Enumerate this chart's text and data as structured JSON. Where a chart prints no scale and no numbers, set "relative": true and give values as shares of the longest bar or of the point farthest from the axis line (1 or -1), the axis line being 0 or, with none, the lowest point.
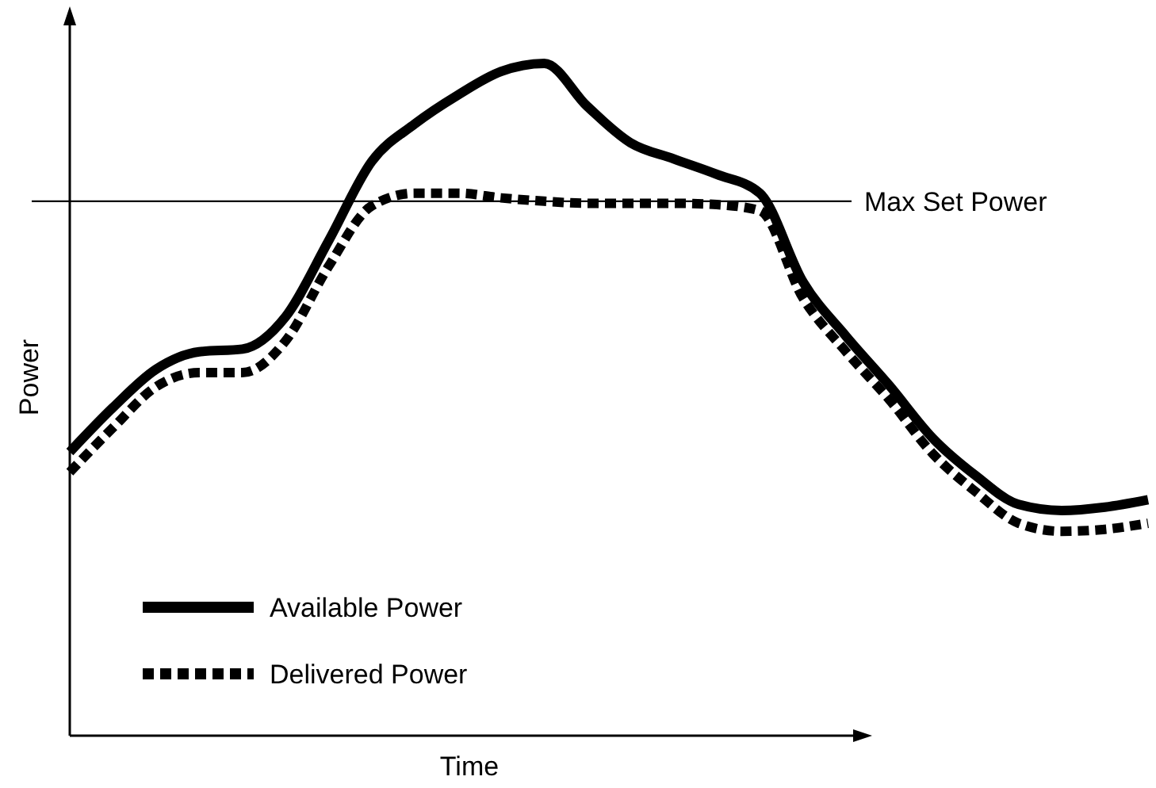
{
  "chart_data": {
    "type": "line",
    "xlabel": "Time",
    "ylabel": "Power",
    "relative": true,
    "legend": "bottom left",
    "categories": [
      null,
      null,
      null,
      null,
      null,
      null,
      null,
      null,
      null,
      null,
      null,
      null,
      null,
      null,
      null,
      null,
      null,
      null,
      null,
      null,
      null,
      null,
      null,
      null,
      null,
      null
    ],
    "series": [
      {
        "name": "Available Power",
        "color": "#000000",
        "line_style": "solid",
        "values": [
          0.422,
          0.488,
          0.545,
          0.571,
          0.575,
          0.623,
          0.736,
          0.854,
          0.91,
          0.953,
          0.988,
          1,
          0.936,
          0.882,
          0.858,
          0.835,
          0.807,
          0.675,
          0.594,
          0.521,
          0.443,
          0.387,
          0.344,
          0.335,
          0.34,
          0.351
        ]
      },
      {
        "name": "Delivered Power",
        "color": "#000000",
        "line_style": "dotted",
        "values": [
          0.392,
          0.458,
          0.519,
          0.54,
          0.54,
          0.587,
          0.698,
          0.788,
          0.807,
          0.807,
          0.8,
          0.795,
          0.792,
          0.792,
          0.792,
          0.79,
          0.781,
          0.651,
          0.571,
          0.5,
          0.42,
          0.363,
          0.316,
          0.304,
          0.307,
          0.316
        ]
      }
    ],
    "ref_lines": [
      {
        "axis": "y",
        "value": 0.795,
        "label": "Max Set Power",
        "color": "#000000",
        "line_style": "solid"
      }
    ]
  }
}
